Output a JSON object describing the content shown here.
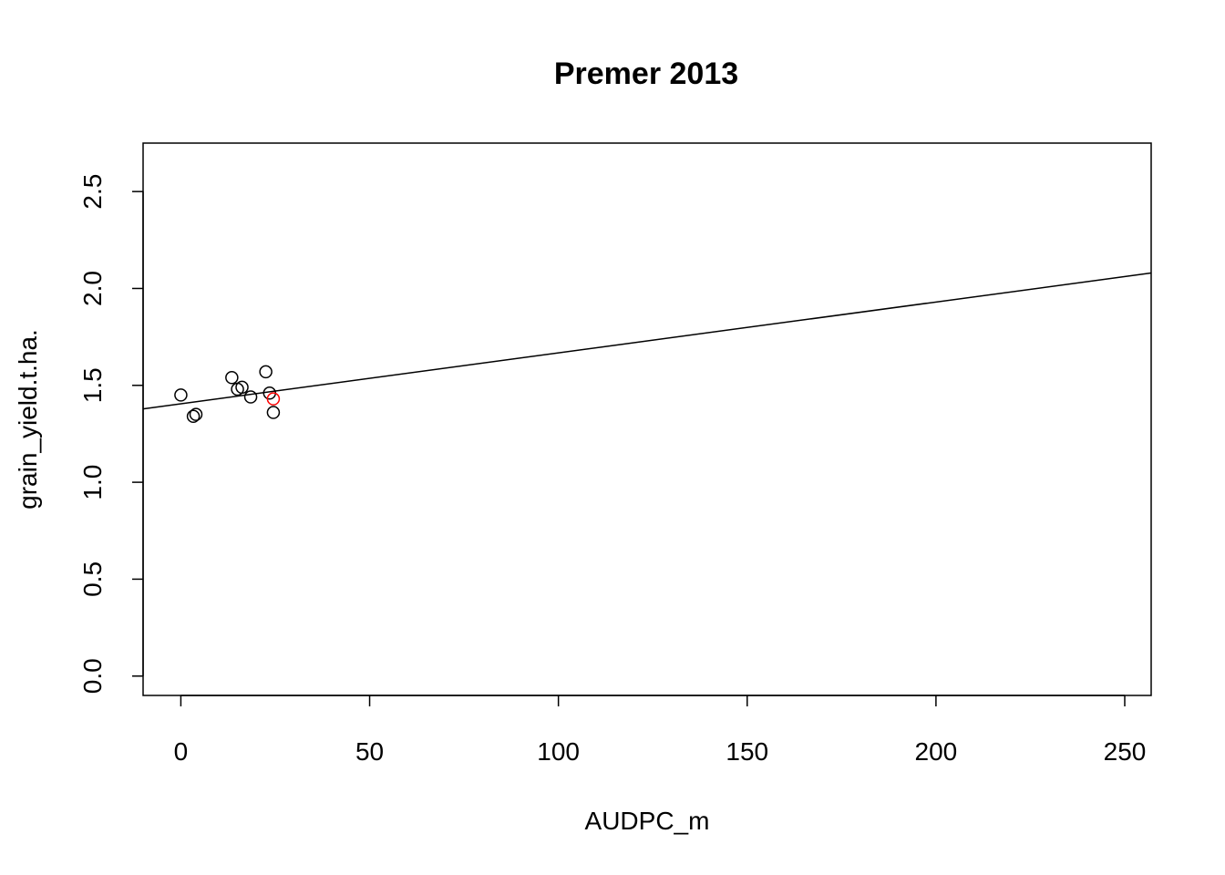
{
  "chart_data": {
    "type": "scatter",
    "title": "Premer 2013",
    "xlabel": "AUDPC_m",
    "ylabel": "grain_yield.t.ha.",
    "xlim": [
      -10,
      257
    ],
    "ylim": [
      -0.1,
      2.75
    ],
    "xticks": [
      0,
      50,
      100,
      150,
      200,
      250
    ],
    "xtick_labels": [
      "0",
      "50",
      "100",
      "150",
      "200",
      "250"
    ],
    "yticks": [
      0.0,
      0.5,
      1.0,
      1.5,
      2.0,
      2.5
    ],
    "ytick_labels": [
      "0.0",
      "0.5",
      "1.0",
      "1.5",
      "2.0",
      "2.5"
    ],
    "grid": false,
    "points": [
      {
        "x": 0.0,
        "y": 1.45,
        "color": "#000000"
      },
      {
        "x": 3.3,
        "y": 1.34,
        "color": "#000000"
      },
      {
        "x": 4.0,
        "y": 1.35,
        "color": "#000000"
      },
      {
        "x": 13.5,
        "y": 1.54,
        "color": "#000000"
      },
      {
        "x": 15.0,
        "y": 1.48,
        "color": "#000000"
      },
      {
        "x": 16.2,
        "y": 1.49,
        "color": "#000000"
      },
      {
        "x": 18.5,
        "y": 1.44,
        "color": "#000000"
      },
      {
        "x": 22.5,
        "y": 1.57,
        "color": "#000000"
      },
      {
        "x": 23.5,
        "y": 1.46,
        "color": "#000000"
      },
      {
        "x": 24.5,
        "y": 1.36,
        "color": "#000000"
      },
      {
        "x": 24.5,
        "y": 1.43,
        "color": "#ff0000"
      }
    ],
    "fit_line": {
      "intercept": 1.405,
      "slope": 0.002625,
      "color": "#000000"
    }
  }
}
